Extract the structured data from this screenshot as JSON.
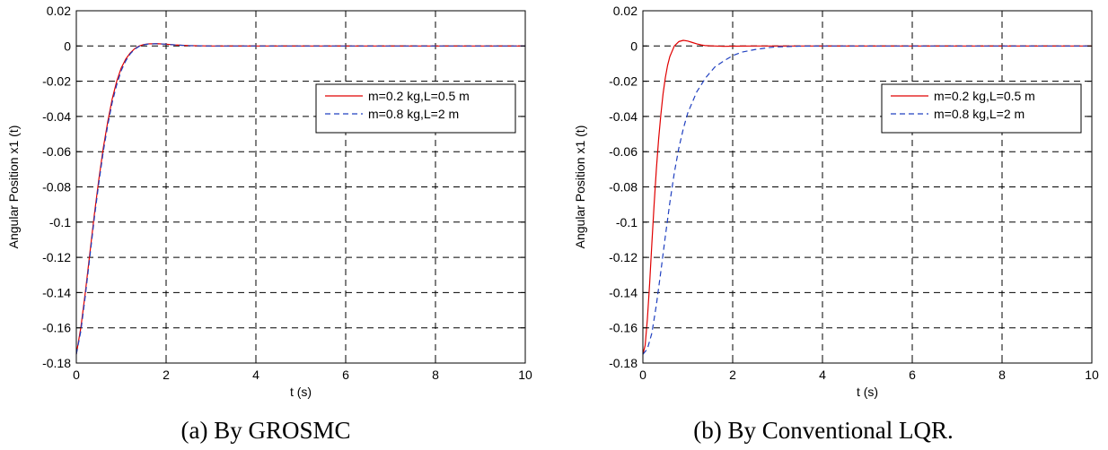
{
  "chart_data": [
    {
      "type": "line",
      "title": "",
      "caption": "(a) By GROSMC",
      "xlabel": "t (s)",
      "ylabel": "Angular Position x1 (t)",
      "xlim": [
        0,
        10
      ],
      "ylim": [
        -0.18,
        0.02
      ],
      "xticks": [
        0,
        2,
        4,
        6,
        8,
        10
      ],
      "xtick_labels": [
        "0",
        "2",
        "4",
        "6",
        "8",
        "10"
      ],
      "yticks": [
        0.02,
        0,
        -0.02,
        -0.04,
        -0.06,
        -0.08,
        -0.1,
        -0.12,
        -0.14,
        -0.16,
        -0.18
      ],
      "ytick_labels": [
        "0.02",
        "0",
        "-0.02",
        "-0.04",
        "-0.06",
        "-0.08",
        "-0.1",
        "-0.12",
        "-0.14",
        "-0.16",
        "-0.18"
      ],
      "grid": true,
      "legend_position": "top-right",
      "series": [
        {
          "name": "m=0.2 kg,L=0.5 m",
          "color": "#e00000",
          "style": "solid",
          "x": [
            0,
            0.1,
            0.2,
            0.3,
            0.4,
            0.5,
            0.6,
            0.7,
            0.8,
            0.9,
            1.0,
            1.1,
            1.2,
            1.3,
            1.4,
            1.5,
            1.6,
            1.8,
            2.0,
            2.2,
            2.5,
            3.0,
            3.5,
            4,
            10
          ],
          "y": [
            -0.175,
            -0.16,
            -0.14,
            -0.118,
            -0.096,
            -0.076,
            -0.058,
            -0.043,
            -0.03,
            -0.02,
            -0.0125,
            -0.0075,
            -0.004,
            -0.0015,
            0.0,
            0.0008,
            0.0012,
            0.0013,
            0.001,
            0.0006,
            0.0002,
            0.0,
            0.0,
            0.0,
            0.0
          ]
        },
        {
          "name": "m=0.8 kg,L=2 m",
          "color": "#2040c0",
          "style": "dashed",
          "x": [
            0,
            0.1,
            0.2,
            0.3,
            0.4,
            0.5,
            0.6,
            0.7,
            0.8,
            0.9,
            1.0,
            1.1,
            1.2,
            1.3,
            1.4,
            1.5,
            1.6,
            1.8,
            2.0,
            2.2,
            2.5,
            3.0,
            3.5,
            4,
            10
          ],
          "y": [
            -0.175,
            -0.162,
            -0.142,
            -0.12,
            -0.098,
            -0.078,
            -0.06,
            -0.045,
            -0.032,
            -0.022,
            -0.014,
            -0.0085,
            -0.0045,
            -0.0018,
            -0.0002,
            0.0007,
            0.0011,
            0.0013,
            0.001,
            0.0006,
            0.0002,
            0.0,
            0.0,
            0.0,
            0.0
          ]
        }
      ]
    },
    {
      "type": "line",
      "title": "",
      "caption": "(b) By Conventional LQR.",
      "xlabel": "t (s)",
      "ylabel": "Angular Position x1 (t)",
      "xlim": [
        0,
        10
      ],
      "ylim": [
        -0.18,
        0.02
      ],
      "xticks": [
        0,
        2,
        4,
        6,
        8,
        10
      ],
      "xtick_labels": [
        "0",
        "2",
        "4",
        "6",
        "8",
        "10"
      ],
      "yticks": [
        0.02,
        0,
        -0.02,
        -0.04,
        -0.06,
        -0.08,
        -0.1,
        -0.12,
        -0.14,
        -0.16,
        -0.18
      ],
      "ytick_labels": [
        "0.02",
        "0",
        "-0.02",
        "-0.04",
        "-0.06",
        "-0.08",
        "-0.1",
        "-0.12",
        "-0.14",
        "-0.16",
        "-0.18"
      ],
      "grid": true,
      "legend_position": "top-right",
      "series": [
        {
          "name": "m=0.2 kg,L=0.5 m",
          "color": "#e00000",
          "style": "solid",
          "x": [
            0,
            0.05,
            0.1,
            0.15,
            0.2,
            0.25,
            0.3,
            0.35,
            0.4,
            0.45,
            0.5,
            0.55,
            0.6,
            0.7,
            0.8,
            0.9,
            1.0,
            1.1,
            1.2,
            1.3,
            1.4,
            1.6,
            1.8,
            2.0,
            2.5,
            3.0,
            10
          ],
          "y": [
            -0.175,
            -0.17,
            -0.155,
            -0.135,
            -0.112,
            -0.09,
            -0.07,
            -0.053,
            -0.039,
            -0.027,
            -0.018,
            -0.011,
            -0.006,
            0.0,
            0.0025,
            0.0032,
            0.0028,
            0.002,
            0.0012,
            0.0006,
            0.0002,
            0.0,
            -0.0002,
            -0.0001,
            0.0,
            0.0,
            0.0
          ]
        },
        {
          "name": "m=0.8 kg,L=2 m",
          "color": "#2040c0",
          "style": "dashed",
          "x": [
            0,
            0.1,
            0.2,
            0.3,
            0.4,
            0.5,
            0.6,
            0.7,
            0.8,
            0.9,
            1.0,
            1.2,
            1.4,
            1.6,
            1.8,
            2.0,
            2.2,
            2.5,
            2.8,
            3.0,
            3.5,
            4.0,
            10
          ],
          "y": [
            -0.175,
            -0.172,
            -0.163,
            -0.147,
            -0.128,
            -0.108,
            -0.089,
            -0.072,
            -0.058,
            -0.047,
            -0.038,
            -0.026,
            -0.018,
            -0.012,
            -0.0085,
            -0.0055,
            -0.0035,
            -0.002,
            -0.0009,
            -0.0005,
            -0.0001,
            0.0,
            0.0
          ]
        }
      ]
    }
  ]
}
